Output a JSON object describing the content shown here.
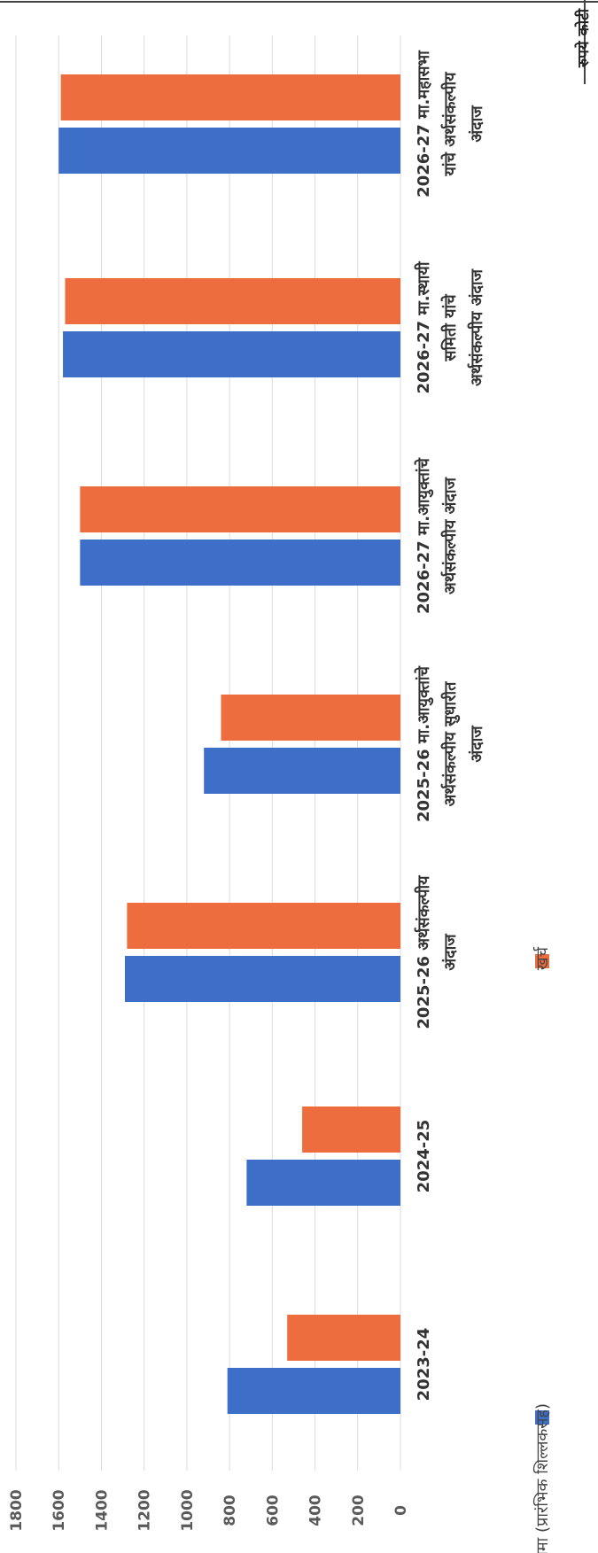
{
  "chart_data": {
    "type": "bar",
    "orientation": "horizontal",
    "unit_label": "रुपये कोटी",
    "categories": [
      "2023-24",
      "2024-25",
      "2025-26 अर्थसंकल्पीय अंदाज",
      "2025-26 मा.आयुक्तांचे अर्थसंकल्पीय सुधारीत अंदाज",
      "2026-27 मा.आयुक्तांचे अर्थसंकल्पीय अंदाज",
      "2026-27 मा.स्थायी समिती यांचे अर्थसंकल्पीय अंदाज",
      "2026-27 मा.महासभा यांचे अर्थसंकल्पीय अंदाज"
    ],
    "series": [
      {
        "name": "जमा (प्रारंभिक शिल्लकसह)",
        "color": "#3d6fc8",
        "values": [
          810,
          720,
          1290,
          920,
          1500,
          1580,
          1600
        ]
      },
      {
        "name": "खर्च",
        "color": "#ee6d3e",
        "values": [
          530,
          460,
          1280,
          840,
          1500,
          1570,
          1590
        ]
      }
    ],
    "value_axis": {
      "min": 0,
      "max": 1800,
      "step": 200,
      "ticks": [
        "0",
        "200",
        "400",
        "600",
        "800",
        "1000",
        "1200",
        "1400",
        "1600",
        "1800"
      ]
    },
    "grid": true,
    "legend_position": "bottom"
  }
}
